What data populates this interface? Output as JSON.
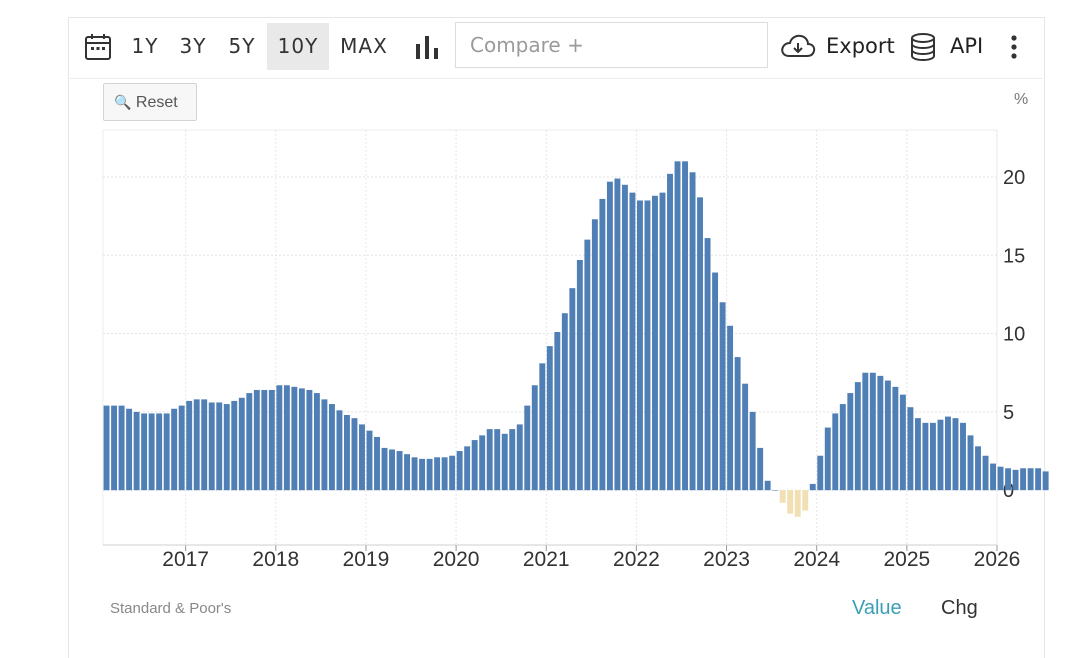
{
  "toolbar": {
    "ranges": [
      "1Y",
      "3Y",
      "5Y",
      "10Y",
      "MAX"
    ],
    "active_range": "10Y",
    "compare_placeholder": "Compare +",
    "export_label": "Export",
    "api_label": "API",
    "icons": [
      "calendar-icon",
      "bar-chart-icon",
      "cloud-download-icon",
      "database-icon",
      "more-vertical-icon"
    ]
  },
  "chart_controls": {
    "reset_label": "Reset",
    "unit_label": "%"
  },
  "footer": {
    "source": "Standard & Poor's",
    "tabs": [
      "Value",
      "Chg"
    ],
    "active_tab": "Value"
  },
  "colors": {
    "positive_bar": "#4f7fb5",
    "negative_bar": "#f2dfb3",
    "accent_tab": "#3aa0b4"
  },
  "chart_data": {
    "type": "bar",
    "x_start": "2016-02",
    "frequency": "monthly",
    "x_tick_labels": [
      "2017",
      "2018",
      "2019",
      "2020",
      "2021",
      "2022",
      "2023",
      "2024",
      "2025",
      "2026"
    ],
    "y_tick_labels": [
      "0",
      "5",
      "10",
      "15",
      "20"
    ],
    "ylim": [
      -3.5,
      23
    ],
    "y_axis_side": "right",
    "grid": true,
    "values": [
      5.4,
      5.4,
      5.4,
      5.2,
      5.0,
      4.9,
      4.9,
      4.9,
      4.9,
      5.2,
      5.4,
      5.7,
      5.8,
      5.8,
      5.6,
      5.6,
      5.5,
      5.7,
      5.9,
      6.2,
      6.4,
      6.4,
      6.4,
      6.7,
      6.7,
      6.6,
      6.5,
      6.4,
      6.2,
      5.8,
      5.5,
      5.1,
      4.8,
      4.6,
      4.2,
      3.8,
      3.4,
      2.7,
      2.6,
      2.5,
      2.3,
      2.1,
      2.0,
      2.0,
      2.1,
      2.1,
      2.2,
      2.5,
      2.8,
      3.2,
      3.5,
      3.9,
      3.9,
      3.6,
      3.9,
      4.2,
      5.4,
      6.7,
      8.1,
      9.2,
      10.1,
      11.3,
      12.9,
      14.7,
      16.0,
      17.3,
      18.6,
      19.7,
      19.9,
      19.5,
      19.0,
      18.5,
      18.5,
      18.8,
      19.0,
      20.2,
      21.0,
      21.0,
      20.3,
      18.7,
      16.1,
      13.9,
      12.0,
      10.5,
      8.5,
      6.8,
      5.0,
      2.7,
      0.6,
      0.0,
      -0.8,
      -1.5,
      -1.7,
      -1.3,
      0.4,
      2.2,
      4.0,
      4.9,
      5.5,
      6.2,
      6.9,
      7.5,
      7.5,
      7.3,
      7.0,
      6.6,
      6.1,
      5.3,
      4.6,
      4.3,
      4.3,
      4.5,
      4.7,
      4.6,
      4.3,
      3.5,
      2.8,
      2.2,
      1.7,
      1.5,
      1.4,
      1.3,
      1.4,
      1.4,
      1.4,
      1.2
    ]
  }
}
